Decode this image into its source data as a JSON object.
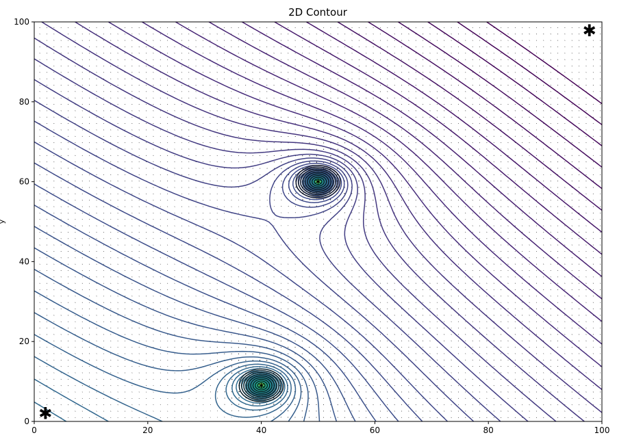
{
  "chart_data": {
    "type": "contour",
    "title": "2D Contour",
    "xlabel": "",
    "ylabel": "y",
    "xlim": [
      0,
      100
    ],
    "ylim": [
      0,
      100
    ],
    "x_ticks": [
      "0",
      "20",
      "40",
      "60",
      "80",
      "100"
    ],
    "y_ticks": [
      "0",
      "20",
      "40",
      "60",
      "80",
      "100"
    ],
    "colormap": "viridis",
    "sources": [
      {
        "x": 40,
        "y": 9
      },
      {
        "x": 50,
        "y": 60
      }
    ],
    "start_marker": {
      "x": 1,
      "y": 2,
      "color": "#0044ff"
    },
    "end_marker": {
      "x": 99,
      "y": 99,
      "color": "#ff0000"
    },
    "quiver_field": true,
    "grid": false
  }
}
